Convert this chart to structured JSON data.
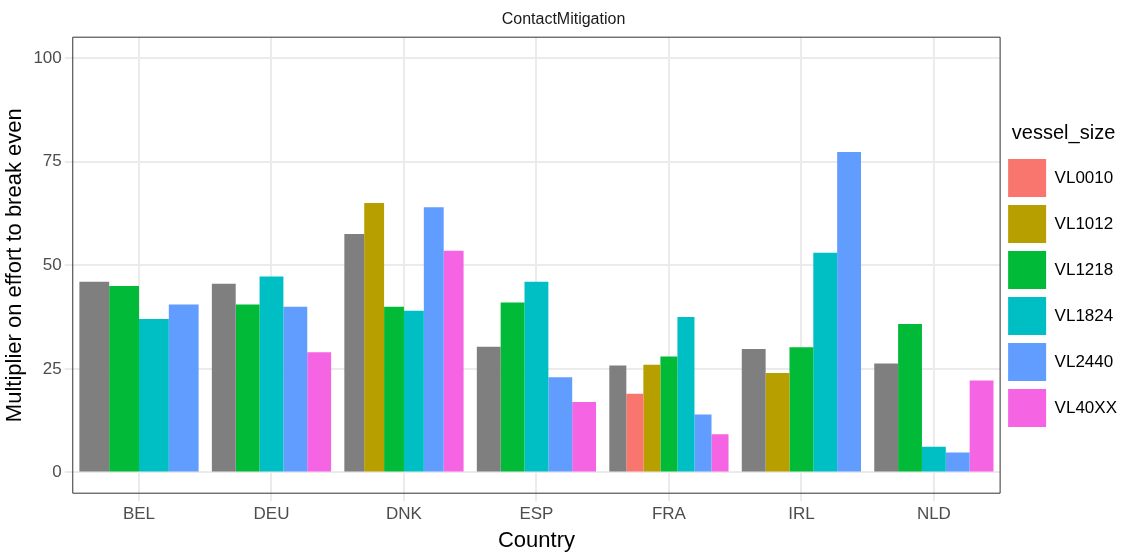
{
  "chart_data": {
    "type": "bar",
    "title": "ContactMitigation",
    "xlabel": "Country",
    "ylabel": "Multiplier on effort to break even",
    "legend_title": "vessel_size",
    "categories": [
      "BEL",
      "DEU",
      "DNK",
      "ESP",
      "FRA",
      "IRL",
      "NLD"
    ],
    "series": [
      {
        "color": "#7f7f7f",
        "values": [
          46,
          45.5,
          57.5,
          30.3,
          25.8,
          29.8,
          26.3
        ]
      },
      {
        "name": "VL0010",
        "color": "#f8766d",
        "values": [
          null,
          null,
          null,
          null,
          19,
          null,
          null
        ]
      },
      {
        "name": "VL1012",
        "color": "#b79f00",
        "values": [
          null,
          null,
          65,
          null,
          26,
          24,
          null
        ]
      },
      {
        "name": "VL1218",
        "color": "#00ba38",
        "values": [
          45,
          40.5,
          40,
          41,
          28,
          30.2,
          35.8
        ]
      },
      {
        "name": "VL1824",
        "color": "#00bfc4",
        "values": [
          37,
          47.3,
          39,
          46,
          37.5,
          53,
          6.2
        ]
      },
      {
        "name": "VL2440",
        "color": "#619cff",
        "values": [
          40.5,
          40,
          64,
          23,
          14,
          77.3,
          4.8
        ]
      },
      {
        "name": "VL40XX",
        "color": "#f564e3",
        "values": [
          null,
          29,
          53.5,
          17,
          9.2,
          null,
          22.2
        ]
      }
    ],
    "ylim": [
      -5,
      105
    ],
    "yticks": [
      0,
      25,
      50,
      75,
      100
    ],
    "grid": true,
    "legend": "right"
  }
}
